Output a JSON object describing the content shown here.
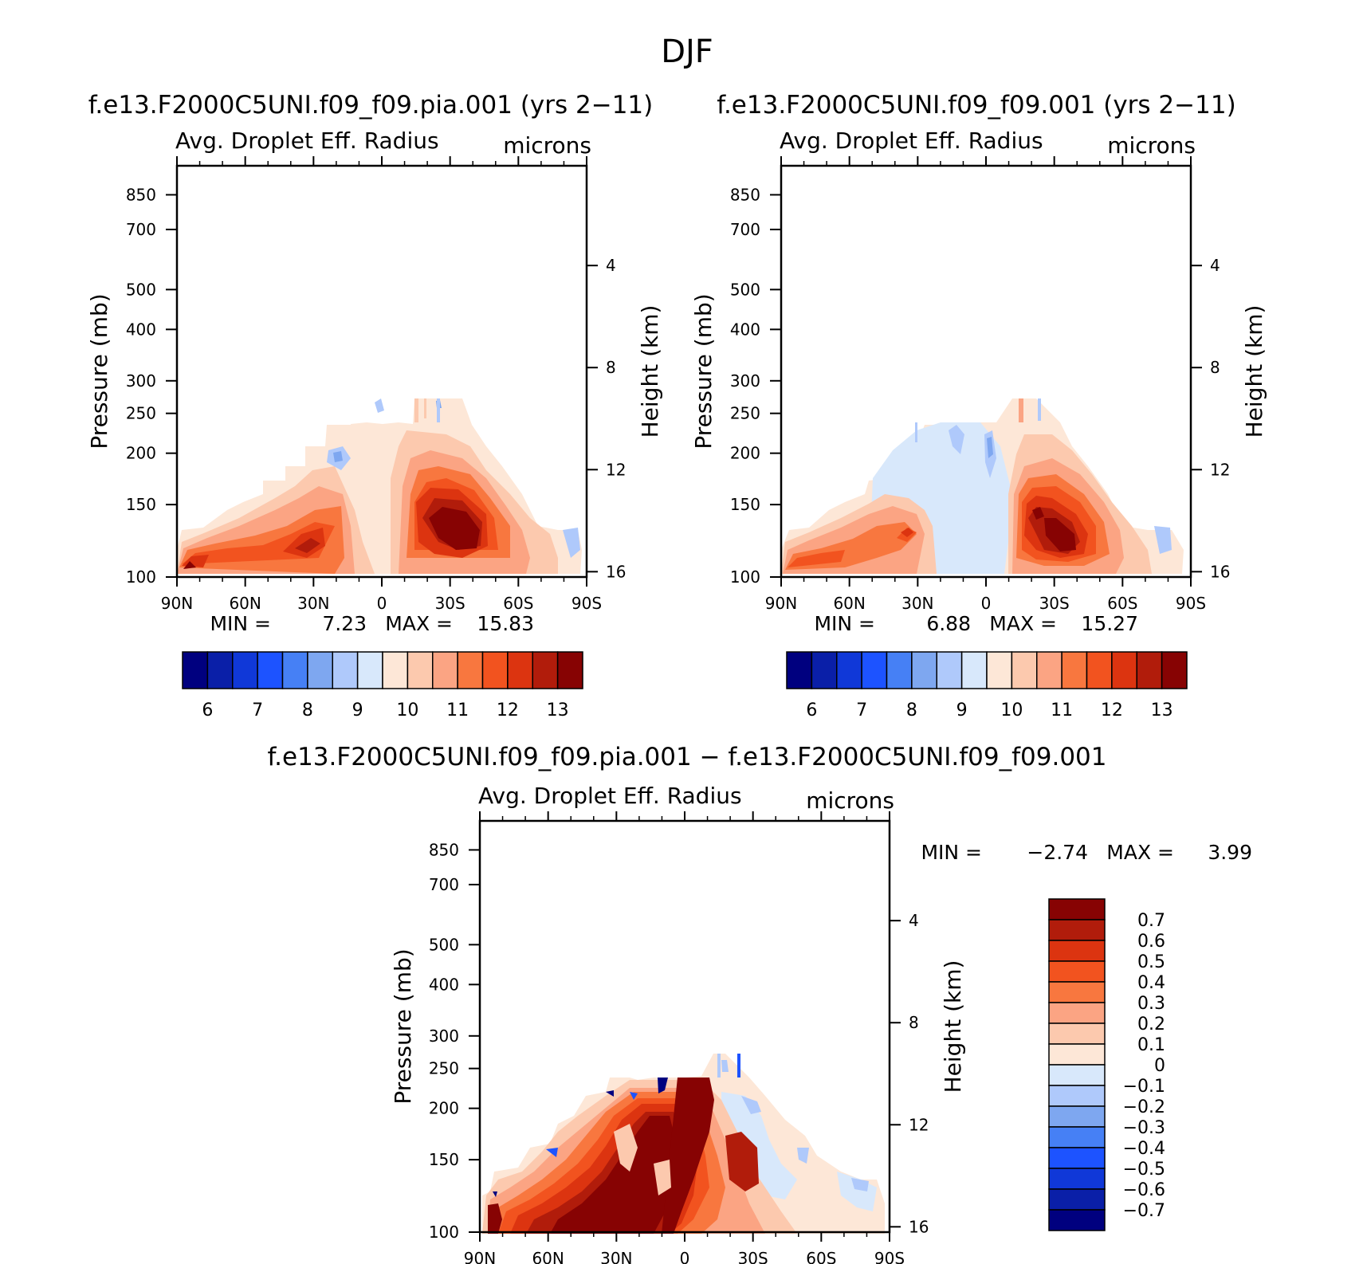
{
  "figure_title": "DJF",
  "colors": {
    "panel_scale": [
      "#00007f",
      "#0a1fa8",
      "#1038d8",
      "#1d53ff",
      "#4680f5",
      "#7ea7f0",
      "#afc9fb",
      "#d8e8fb",
      "#fde7d7",
      "#fcc9ae",
      "#fba483",
      "#f8773f",
      "#f2531f",
      "#dc3410",
      "#b11c0b",
      "#870303"
    ],
    "diff_scale": [
      "#00007f",
      "#0a1fa8",
      "#1038d8",
      "#1d53ff",
      "#4680f5",
      "#7ea7f0",
      "#afc9fb",
      "#d8e8fb",
      "#fde7d7",
      "#fcc9ae",
      "#fba483",
      "#f8773f",
      "#f2531f",
      "#dc3410",
      "#b11c0b",
      "#870303"
    ]
  },
  "chart_data": [
    {
      "id": "panel1",
      "type": "heatmap",
      "title": "f.e13.F2000C5UNI.f09_f09.pia.001 (yrs 2−11)",
      "left_label": "Avg. Droplet Eff. Radius",
      "right_label": "microns",
      "ylabel": "Pressure (mb)",
      "y2label": "Height (km)",
      "x_ticks": [
        "90N",
        "60N",
        "30N",
        "0",
        "30S",
        "60S",
        "90S"
      ],
      "y_ticks": [
        "100",
        "150",
        "200",
        "250",
        "300",
        "400",
        "500",
        "700",
        "850"
      ],
      "y2_ticks": [
        "16",
        "12",
        "8",
        "4"
      ],
      "min_label": "MIN =",
      "min_value": "7.23",
      "max_label": "MAX =",
      "max_value": "15.83",
      "colorbar_labels": [
        "6",
        "7",
        "8",
        "9",
        "10",
        "11",
        "12",
        "13"
      ],
      "xlim": [
        -90,
        90
      ],
      "ylim": [
        1000,
        100
      ]
    },
    {
      "id": "panel2",
      "type": "heatmap",
      "title": "f.e13.F2000C5UNI.f09_f09.001 (yrs 2−11)",
      "left_label": "Avg. Droplet Eff. Radius",
      "right_label": "microns",
      "ylabel": "Pressure (mb)",
      "y2label": "Height (km)",
      "x_ticks": [
        "90N",
        "60N",
        "30N",
        "0",
        "30S",
        "60S",
        "90S"
      ],
      "y_ticks": [
        "100",
        "150",
        "200",
        "250",
        "300",
        "400",
        "500",
        "700",
        "850"
      ],
      "y2_ticks": [
        "16",
        "12",
        "8",
        "4"
      ],
      "min_label": "MIN =",
      "min_value": "6.88",
      "max_label": "MAX =",
      "max_value": "15.27",
      "colorbar_labels": [
        "6",
        "7",
        "8",
        "9",
        "10",
        "11",
        "12",
        "13"
      ],
      "xlim": [
        -90,
        90
      ],
      "ylim": [
        1000,
        100
      ]
    },
    {
      "id": "panel3",
      "type": "heatmap",
      "title": "f.e13.F2000C5UNI.f09_f09.pia.001 − f.e13.F2000C5UNI.f09_f09.001",
      "left_label": "Avg. Droplet Eff. Radius",
      "right_label": "microns",
      "ylabel": "Pressure (mb)",
      "y2label": "Height (km)",
      "x_ticks": [
        "90N",
        "60N",
        "30N",
        "0",
        "30S",
        "60S",
        "90S"
      ],
      "y_ticks": [
        "100",
        "150",
        "200",
        "250",
        "300",
        "400",
        "500",
        "700",
        "850"
      ],
      "y2_ticks": [
        "16",
        "12",
        "8",
        "4"
      ],
      "min_label": "MIN =",
      "min_value": "−2.74",
      "max_label": "MAX =",
      "max_value": "3.99",
      "colorbar_labels": [
        "0.7",
        "0.6",
        "0.5",
        "0.4",
        "0.3",
        "0.2",
        "0.1",
        "0",
        "−0.1",
        "−0.2",
        "−0.3",
        "−0.4",
        "−0.5",
        "−0.6",
        "−0.7"
      ],
      "xlim": [
        -90,
        90
      ],
      "ylim": [
        1000,
        100
      ]
    }
  ]
}
